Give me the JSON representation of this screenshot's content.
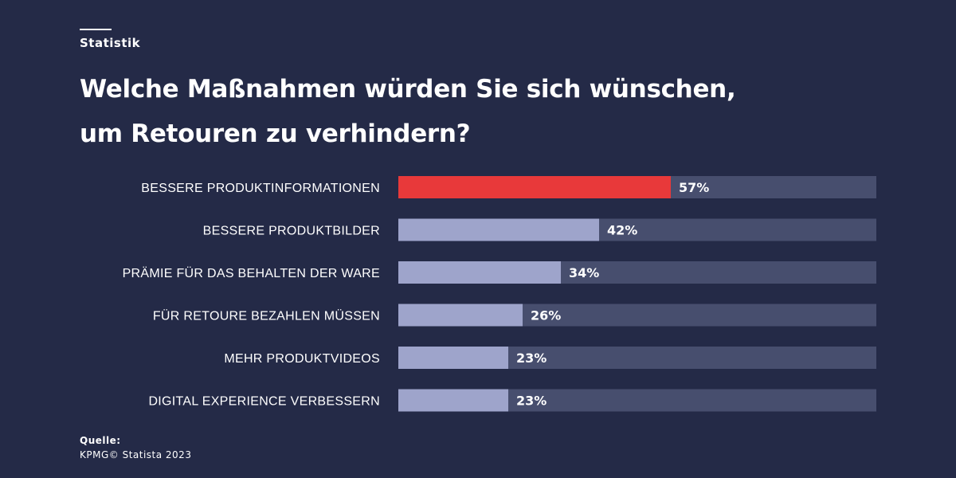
{
  "header": {
    "eyebrow": "Statistik",
    "title_line1": "Welche Maßnahmen würden Sie sich wünschen,",
    "title_line2": "um Retouren zu verhindern?"
  },
  "footer": {
    "source_label": "Quelle:",
    "source_text": "KPMG© Statista 2023"
  },
  "colors": {
    "background": "#242a47",
    "track": "#474e6e",
    "highlight": "#e8393a",
    "bar": "#9ea4cb",
    "text": "#ffffff"
  },
  "chart_data": {
    "type": "bar",
    "orientation": "horizontal",
    "categories": [
      "BESSERE PRODUKTINFORMATIONEN",
      "BESSERE PRODUKTBILDER",
      "PRÄMIE FÜR DAS BEHALTEN DER WARE",
      "FÜR RETOURE BEZAHLEN MÜSSEN",
      "MEHR PRODUKTVIDEOS",
      "DIGITAL EXPERIENCE VERBESSERN"
    ],
    "values": [
      57,
      42,
      34,
      26,
      23,
      23
    ],
    "value_labels": [
      "57%",
      "42%",
      "34%",
      "26%",
      "23%",
      "23%"
    ],
    "unit": "%",
    "xlim": [
      0,
      100
    ],
    "highlighted_index": 0,
    "grid": false,
    "legend": "none"
  }
}
